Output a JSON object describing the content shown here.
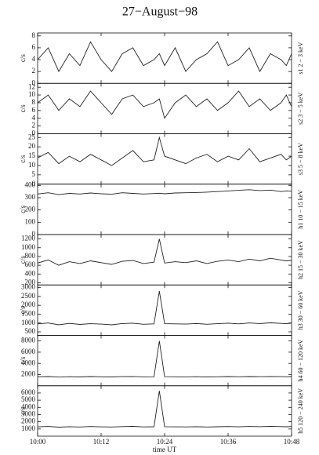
{
  "chart_data": [
    {
      "type": "line",
      "title": "27−August−98",
      "label": "s1  2 − 3 keV",
      "ylabel": "c/s",
      "x": [
        "10:00",
        "10:02",
        "10:04",
        "10:06",
        "10:08",
        "10:10",
        "10:12",
        "10:14",
        "10:16",
        "10:18",
        "10:20",
        "10:22",
        "10:23",
        "10:24",
        "10:26",
        "10:28",
        "10:30",
        "10:32",
        "10:34",
        "10:36",
        "10:38",
        "10:40",
        "10:42",
        "10:44",
        "10:46",
        "10:47",
        "10:48"
      ],
      "series": [
        {
          "color": "#222222",
          "values": [
            4,
            6,
            2,
            5,
            3,
            7,
            4,
            2,
            5,
            6,
            3,
            4,
            5,
            3,
            6,
            2,
            4,
            5,
            7,
            3,
            4,
            6,
            2,
            5,
            4,
            3,
            5
          ]
        }
      ],
      "xlim": [
        "10:00",
        "10:48"
      ],
      "xticks": [
        "10:00",
        "10:12",
        "10:24",
        "10:36",
        "10:48"
      ],
      "ylim": [
        0,
        8.5
      ],
      "yticks": [
        0,
        2,
        4,
        6,
        8
      ]
    },
    {
      "type": "line",
      "label": "s2  3 − 5 keV",
      "ylabel": "c/s",
      "x": [
        "10:00",
        "10:02",
        "10:04",
        "10:06",
        "10:08",
        "10:10",
        "10:12",
        "10:14",
        "10:16",
        "10:18",
        "10:20",
        "10:22",
        "10:23",
        "10:24",
        "10:26",
        "10:28",
        "10:30",
        "10:32",
        "10:34",
        "10:36",
        "10:38",
        "10:40",
        "10:42",
        "10:44",
        "10:46",
        "10:47",
        "10:48"
      ],
      "series": [
        {
          "color": "#222222",
          "values": [
            8,
            10,
            6,
            9,
            7,
            11,
            8,
            5,
            9,
            10,
            7,
            8,
            9,
            4,
            8,
            10,
            7,
            9,
            6,
            8,
            11,
            7,
            9,
            6,
            8,
            10,
            7
          ]
        }
      ],
      "xlim": [
        "10:00",
        "10:48"
      ],
      "xticks": [
        "10:00",
        "10:12",
        "10:24",
        "10:36",
        "10:48"
      ],
      "ylim": [
        0,
        13
      ],
      "yticks": [
        0,
        2,
        4,
        6,
        8,
        10,
        12
      ]
    },
    {
      "type": "line",
      "label": "s3  5 − 8 keV",
      "ylabel": "c/s",
      "x": [
        "10:00",
        "10:02",
        "10:04",
        "10:06",
        "10:08",
        "10:10",
        "10:12",
        "10:14",
        "10:16",
        "10:18",
        "10:20",
        "10:22",
        "10:23",
        "10:24",
        "10:26",
        "10:28",
        "10:30",
        "10:32",
        "10:34",
        "10:36",
        "10:38",
        "10:40",
        "10:42",
        "10:44",
        "10:46",
        "10:47",
        "10:48"
      ],
      "series": [
        {
          "color": "#222222",
          "values": [
            14,
            17,
            11,
            15,
            12,
            16,
            13,
            10,
            14,
            18,
            12,
            13,
            25,
            15,
            13,
            11,
            14,
            16,
            12,
            15,
            13,
            19,
            12,
            14,
            16,
            13,
            15
          ]
        }
      ],
      "xlim": [
        "10:00",
        "10:48"
      ],
      "xticks": [
        "10:00",
        "10:12",
        "10:24",
        "10:36",
        "10:48"
      ],
      "ylim": [
        0,
        27
      ],
      "yticks": [
        0,
        5,
        10,
        15,
        20,
        25
      ]
    },
    {
      "type": "line",
      "label": "h1  10 − 15 keV",
      "ylabel": "c/s",
      "x": [
        "10:00",
        "10:02",
        "10:04",
        "10:06",
        "10:08",
        "10:10",
        "10:12",
        "10:14",
        "10:16",
        "10:18",
        "10:20",
        "10:22",
        "10:23",
        "10:24",
        "10:26",
        "10:28",
        "10:30",
        "10:32",
        "10:34",
        "10:36",
        "10:38",
        "10:40",
        "10:42",
        "10:44",
        "10:46",
        "10:47",
        "10:48"
      ],
      "series": [
        {
          "color": "#222222",
          "values": [
            330,
            340,
            325,
            335,
            330,
            338,
            332,
            328,
            340,
            335,
            330,
            334,
            336,
            332,
            338,
            340,
            342,
            345,
            350,
            355,
            360,
            365,
            358,
            362,
            350,
            355,
            352
          ]
        }
      ],
      "xlim": [
        "10:00",
        "10:48"
      ],
      "xticks": [
        "10:00",
        "10:12",
        "10:24",
        "10:36",
        "10:48"
      ],
      "ylim": [
        0,
        410
      ],
      "yticks": [
        0,
        100,
        200,
        300,
        400
      ]
    },
    {
      "type": "line",
      "label": "h2  15 − 30 keV",
      "ylabel": "c/s",
      "x": [
        "10:00",
        "10:02",
        "10:04",
        "10:06",
        "10:08",
        "10:10",
        "10:12",
        "10:14",
        "10:16",
        "10:18",
        "10:20",
        "10:22",
        "10:23",
        "10:24",
        "10:26",
        "10:28",
        "10:30",
        "10:32",
        "10:34",
        "10:36",
        "10:38",
        "10:40",
        "10:42",
        "10:44",
        "10:46",
        "10:47",
        "10:48"
      ],
      "series": [
        {
          "color": "#222222",
          "values": [
            650,
            720,
            600,
            680,
            640,
            700,
            660,
            620,
            690,
            710,
            640,
            670,
            1200,
            650,
            680,
            660,
            700,
            640,
            690,
            720,
            680,
            740,
            700,
            760,
            720,
            700,
            710
          ]
        }
      ],
      "xlim": [
        "10:00",
        "10:48"
      ],
      "xticks": [
        "10:00",
        "10:12",
        "10:24",
        "10:36",
        "10:48"
      ],
      "ylim": [
        150,
        1300
      ],
      "yticks": [
        200,
        400,
        600,
        800,
        1000,
        1200
      ]
    },
    {
      "type": "line",
      "label": "h3  30 − 60 keV",
      "ylabel": "c/s",
      "x": [
        "10:00",
        "10:02",
        "10:04",
        "10:06",
        "10:08",
        "10:10",
        "10:12",
        "10:14",
        "10:16",
        "10:18",
        "10:20",
        "10:22",
        "10:23",
        "10:24",
        "10:26",
        "10:28",
        "10:30",
        "10:32",
        "10:34",
        "10:36",
        "10:38",
        "10:40",
        "10:42",
        "10:44",
        "10:46",
        "10:47",
        "10:48"
      ],
      "series": [
        {
          "color": "#222222",
          "values": [
            950,
            1000,
            900,
            980,
            920,
            960,
            940,
            900,
            970,
            990,
            930,
            950,
            2800,
            960,
            950,
            940,
            970,
            930,
            960,
            990,
            950,
            1000,
            970,
            1010,
            980,
            960,
            990
          ]
        }
      ],
      "xlim": [
        "10:00",
        "10:48"
      ],
      "xticks": [
        "10:00",
        "10:12",
        "10:24",
        "10:36",
        "10:48"
      ],
      "ylim": [
        300,
        3150
      ],
      "yticks": [
        500,
        1000,
        1500,
        2000,
        2500,
        3000
      ]
    },
    {
      "type": "line",
      "label": "h4  60 − 120 keV",
      "ylabel": "c/s",
      "x": [
        "10:00",
        "10:02",
        "10:04",
        "10:06",
        "10:08",
        "10:10",
        "10:12",
        "10:14",
        "10:16",
        "10:18",
        "10:20",
        "10:22",
        "10:23",
        "10:24",
        "10:26",
        "10:28",
        "10:30",
        "10:32",
        "10:34",
        "10:36",
        "10:38",
        "10:40",
        "10:42",
        "10:44",
        "10:46",
        "10:47",
        "10:48"
      ],
      "series": [
        {
          "color": "#222222",
          "values": [
            1600,
            1650,
            1550,
            1620,
            1580,
            1640,
            1600,
            1570,
            1630,
            1660,
            1590,
            1610,
            8000,
            1620,
            1600,
            1590,
            1620,
            1580,
            1610,
            1640,
            1600,
            1650,
            1620,
            1660,
            1630,
            1610,
            1640
          ]
        }
      ],
      "xlim": [
        "10:00",
        "10:48"
      ],
      "xticks": [
        "10:00",
        "10:12",
        "10:24",
        "10:36",
        "10:48"
      ],
      "ylim": [
        0,
        9000
      ],
      "yticks": [
        2000,
        4000,
        6000,
        8000
      ]
    },
    {
      "type": "line",
      "label": "h5  120 − 240 keV",
      "ylabel": "c/s",
      "xlabel": "time UT",
      "x": [
        "10:00",
        "10:02",
        "10:04",
        "10:06",
        "10:08",
        "10:10",
        "10:12",
        "10:14",
        "10:16",
        "10:18",
        "10:20",
        "10:22",
        "10:23",
        "10:24",
        "10:26",
        "10:28",
        "10:30",
        "10:32",
        "10:34",
        "10:36",
        "10:38",
        "10:40",
        "10:42",
        "10:44",
        "10:46",
        "10:47",
        "10:48"
      ],
      "series": [
        {
          "color": "#222222",
          "values": [
            1300,
            1350,
            1250,
            1320,
            1280,
            1340,
            1300,
            1270,
            1330,
            1360,
            1290,
            1310,
            6300,
            1320,
            1300,
            1290,
            1320,
            1280,
            1310,
            1340,
            1300,
            1350,
            1320,
            1360,
            1330,
            1310,
            1340
          ]
        }
      ],
      "xlim": [
        "10:00",
        "10:48"
      ],
      "xticks": [
        "10:00",
        "10:12",
        "10:24",
        "10:36",
        "10:48"
      ],
      "ylim": [
        0,
        7000
      ],
      "yticks": [
        1000,
        2000,
        3000,
        4000,
        5000,
        6000
      ]
    }
  ]
}
